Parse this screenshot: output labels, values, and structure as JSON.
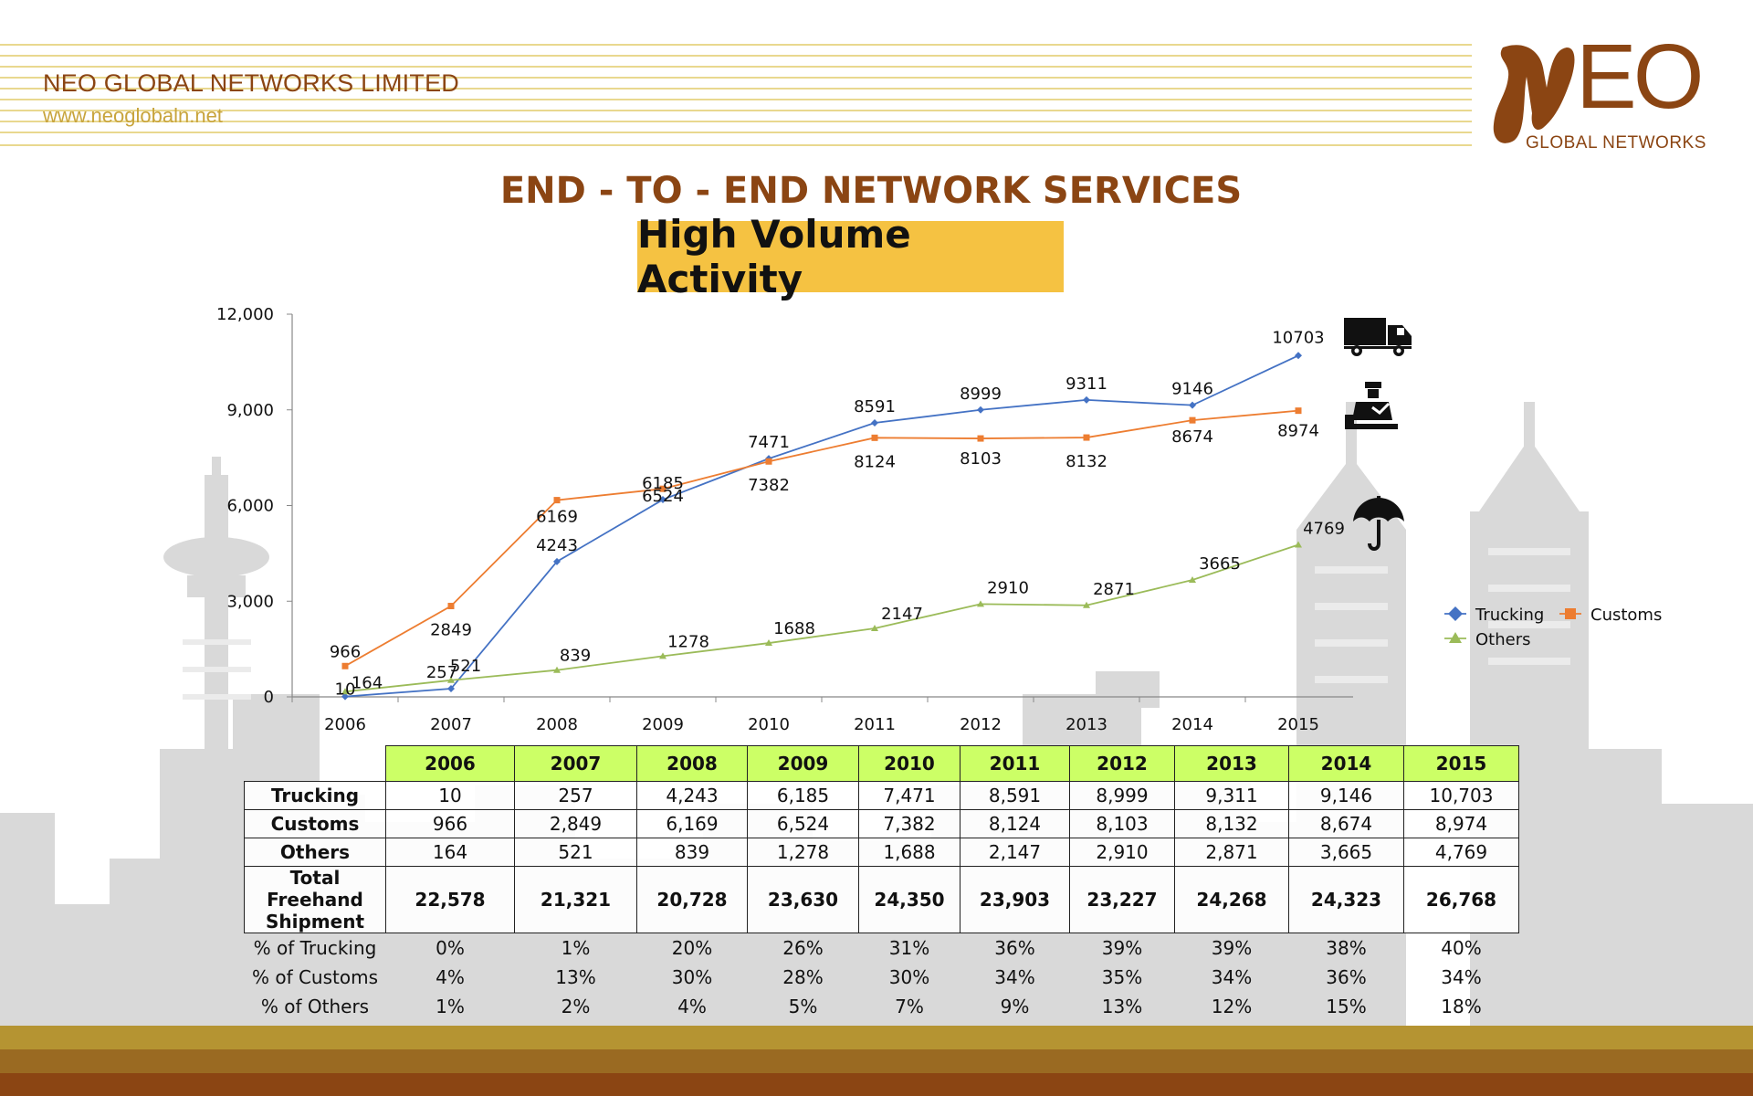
{
  "header": {
    "company_name": "NEO GLOBAL NETWORKS LIMITED",
    "website": "www.neoglobaln.net",
    "logo_main": "EO",
    "logo_sub": "GLOBAL NETWORKS"
  },
  "heading": "END - TO - END NETWORK SERVICES",
  "badge": "High Volume Activity",
  "colors": {
    "brand_brown": "#8b4513",
    "gold": "#c8a43c",
    "badge_yellow": "#f5c242",
    "table_header_green": "#ccff66",
    "trucking": "#4472c4",
    "customs": "#ed7d31",
    "others": "#9bbb59"
  },
  "icons": [
    "truck-icon",
    "customs-officer-icon",
    "umbrella-icon"
  ],
  "chart_data": {
    "type": "line",
    "x": [
      "2006",
      "2007",
      "2008",
      "2009",
      "2010",
      "2011",
      "2012",
      "2013",
      "2014",
      "2015"
    ],
    "ylim": [
      0,
      12000
    ],
    "yticks": [
      "0",
      "3,000",
      "6,000",
      "9,000",
      "12,000"
    ],
    "yticks_values": [
      0,
      3000,
      6000,
      9000,
      12000
    ],
    "legend_position": "right",
    "grid": false,
    "series": [
      {
        "name": "Trucking",
        "marker": "diamond",
        "values": [
          10,
          257,
          4243,
          6185,
          7471,
          8591,
          8999,
          9311,
          9146,
          10703
        ]
      },
      {
        "name": "Customs",
        "marker": "square",
        "values": [
          966,
          2849,
          6169,
          6524,
          7382,
          8124,
          8103,
          8132,
          8674,
          8974
        ]
      },
      {
        "name": "Others",
        "marker": "triangle",
        "values": [
          164,
          521,
          839,
          1278,
          1688,
          2147,
          2910,
          2871,
          3665,
          4769
        ]
      }
    ]
  },
  "table": {
    "years": [
      "2006",
      "2007",
      "2008",
      "2009",
      "2010",
      "2011",
      "2012",
      "2013",
      "2014",
      "2015"
    ],
    "rows": [
      {
        "label": "Trucking",
        "values": [
          "10",
          "257",
          "4,243",
          "6,185",
          "7,471",
          "8,591",
          "8,999",
          "9,311",
          "9,146",
          "10,703"
        ]
      },
      {
        "label": "Customs",
        "values": [
          "966",
          "2,849",
          "6,169",
          "6,524",
          "7,382",
          "8,124",
          "8,103",
          "8,132",
          "8,674",
          "8,974"
        ]
      },
      {
        "label": "Others",
        "values": [
          "164",
          "521",
          "839",
          "1,278",
          "1,688",
          "2,147",
          "2,910",
          "2,871",
          "3,665",
          "4,769"
        ]
      }
    ],
    "total": {
      "label_lines": [
        "Total",
        "Freehand",
        "Shipment"
      ],
      "values": [
        "22,578",
        "21,321",
        "20,728",
        "23,630",
        "24,350",
        "23,903",
        "23,227",
        "24,268",
        "24,323",
        "26,768"
      ]
    },
    "percent_rows": [
      {
        "label": "% of Trucking",
        "values": [
          "0%",
          "1%",
          "20%",
          "26%",
          "31%",
          "36%",
          "39%",
          "39%",
          "38%",
          "40%"
        ]
      },
      {
        "label": "% of Customs",
        "values": [
          "4%",
          "13%",
          "30%",
          "28%",
          "30%",
          "34%",
          "35%",
          "34%",
          "36%",
          "34%"
        ]
      },
      {
        "label": "% of Others",
        "values": [
          "1%",
          "2%",
          "4%",
          "5%",
          "7%",
          "9%",
          "13%",
          "12%",
          "15%",
          "18%"
        ]
      }
    ]
  }
}
